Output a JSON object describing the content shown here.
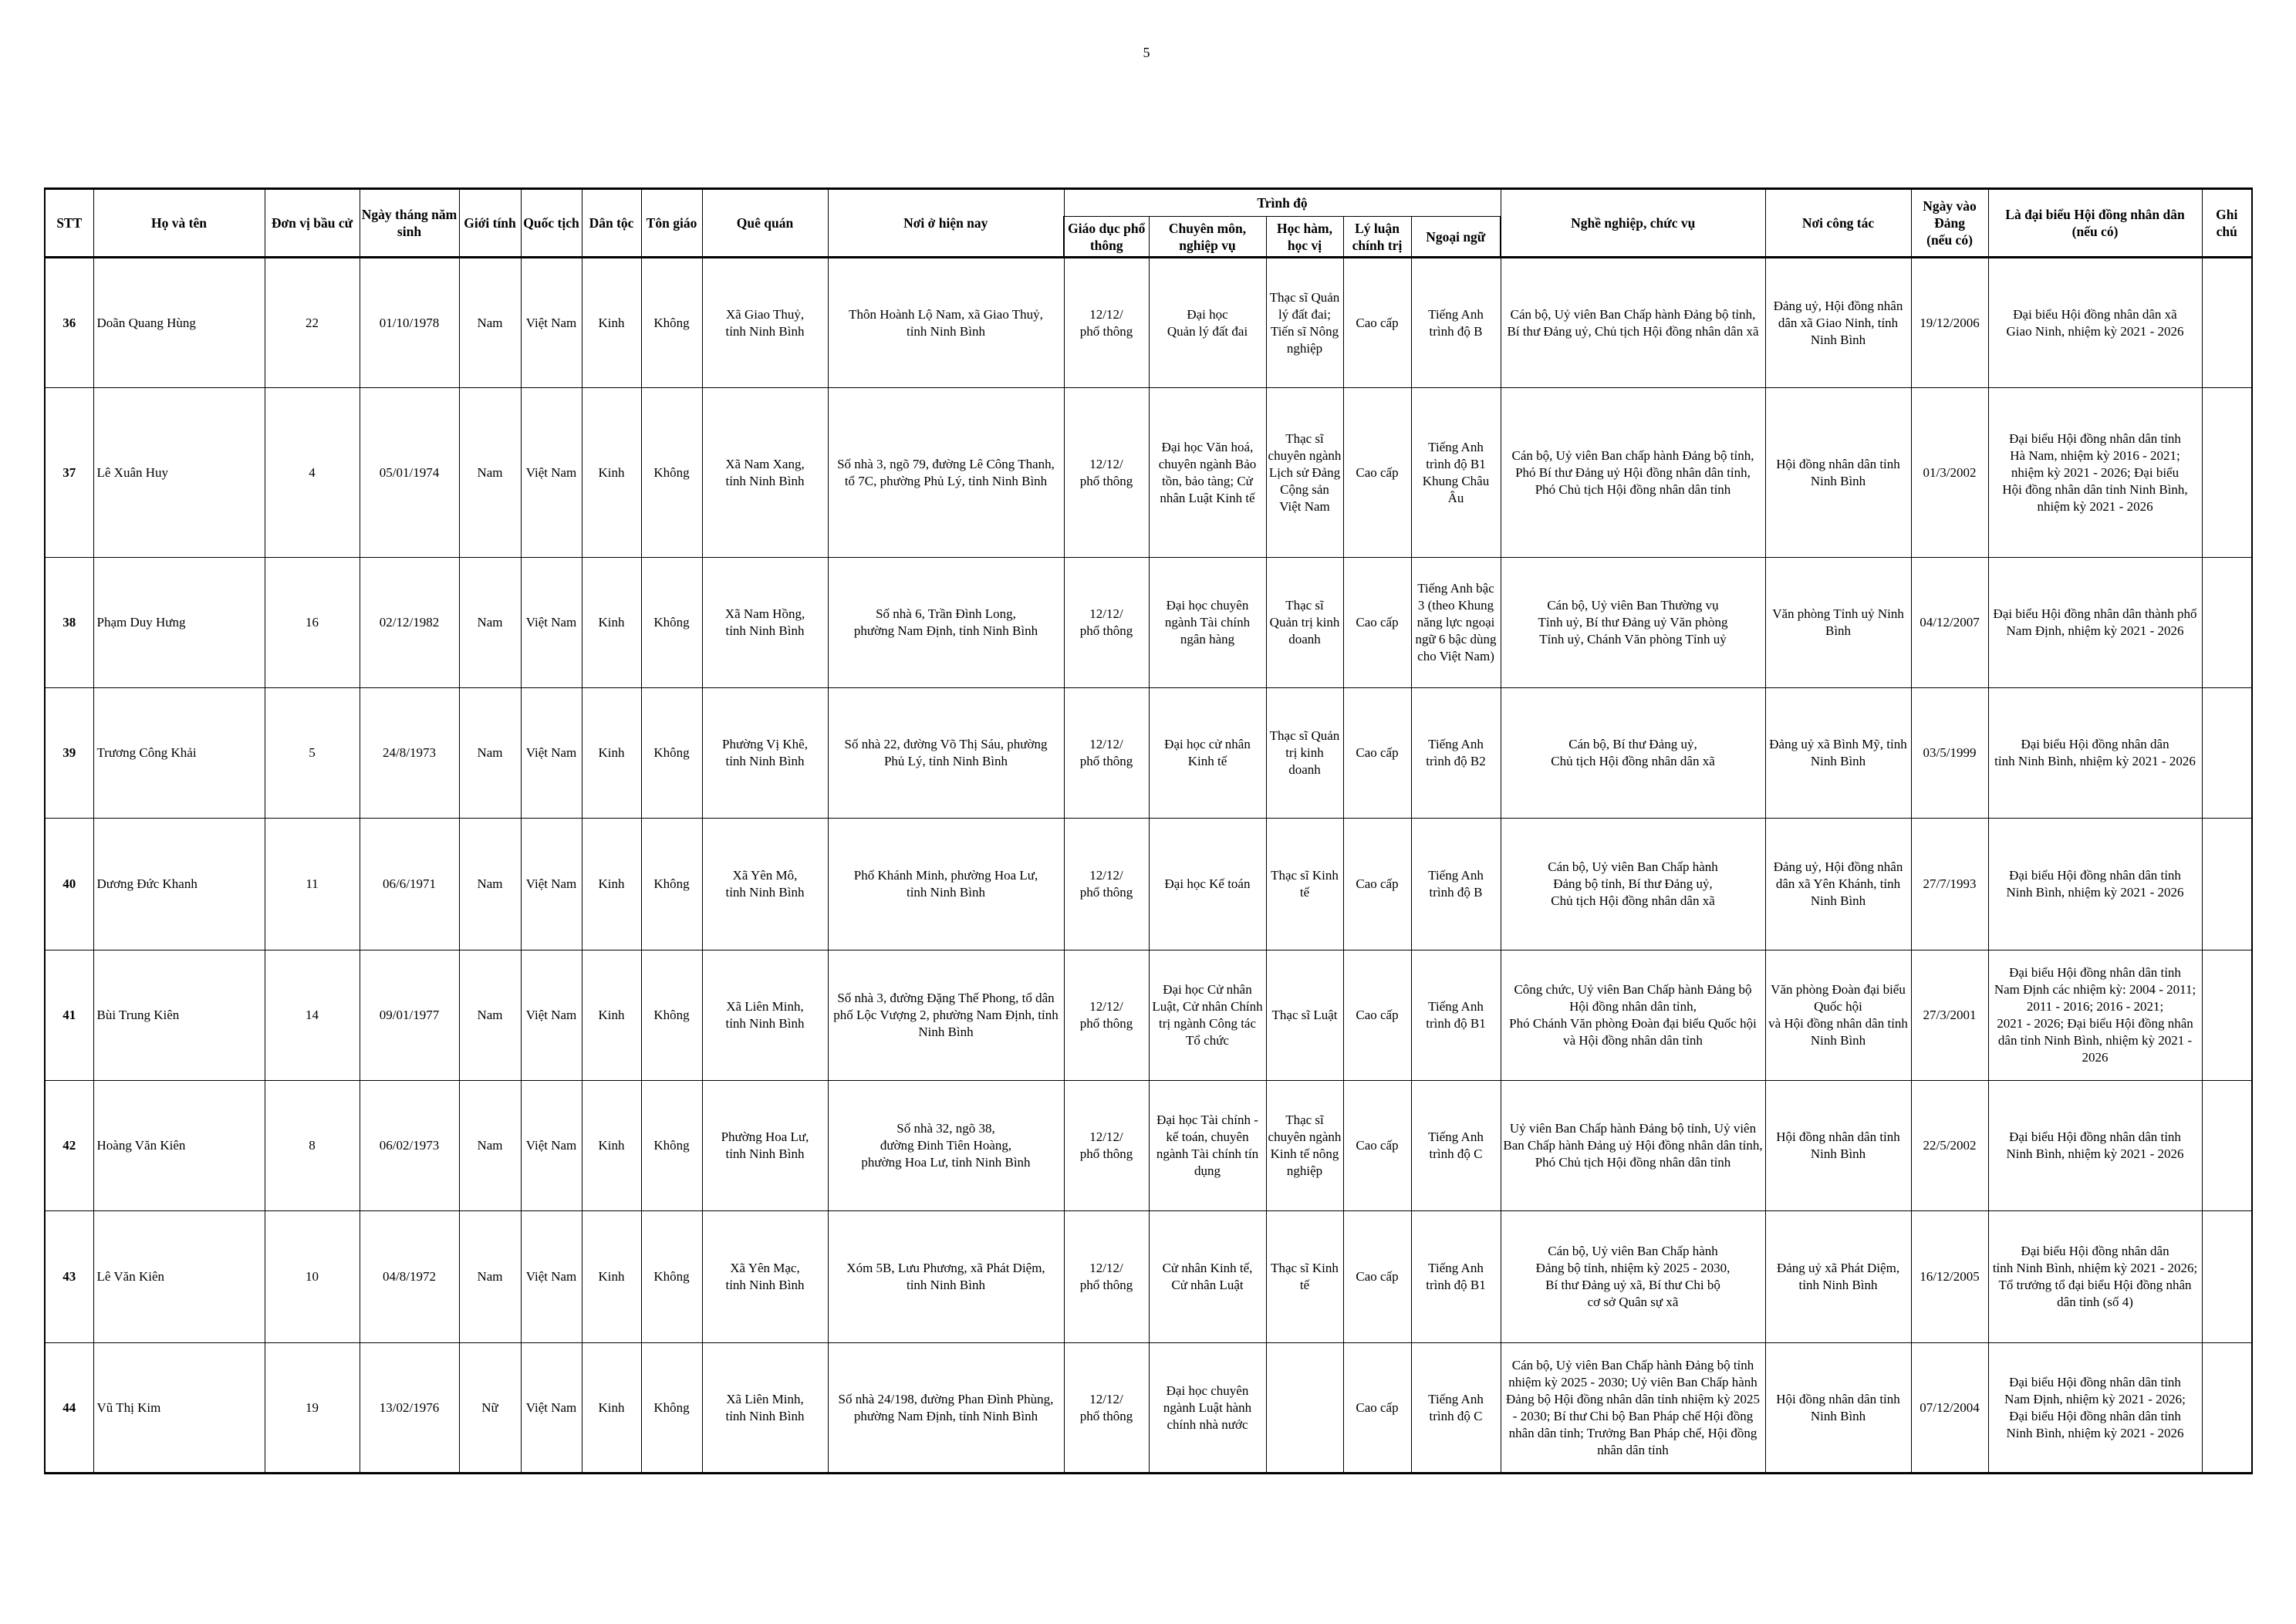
{
  "page_number": "5",
  "table": {
    "headers": {
      "stt": "STT",
      "ho_ten": "Họ và tên",
      "don_vi": "Đơn vị bầu cử",
      "ngay_sinh": "Ngày tháng năm sinh",
      "gioi_tinh": "Giới tính",
      "quoc_tich": "Quốc tịch",
      "dan_toc": "Dân tộc",
      "ton_giao": "Tôn giáo",
      "que_quan": "Quê quán",
      "noi_o": "Nơi ở hiện nay",
      "trinh_do": "Trình độ",
      "gdpt": "Giáo dục phổ thông",
      "chuyen_mon": "Chuyên môn, nghiệp vụ",
      "hoc_ham": "Học hàm, học vị",
      "ly_luan": "Lý luận chính trị",
      "ngoai_ngu": "Ngoại ngữ",
      "nghe_nghiep": "Nghề nghiệp, chức vụ",
      "noi_cong_tac": "Nơi công tác",
      "ngay_vao_dang": "Ngày vào Đảng\n(nếu có)",
      "dai_bieu": "Là đại biểu Hội đồng nhân dân\n(nếu có)",
      "ghi_chu": "Ghi chú"
    },
    "rows": [
      [
        "36",
        "Doãn Quang Hùng",
        "22",
        "01/10/1978",
        "Nam",
        "Việt Nam",
        "Kinh",
        "Không",
        "Xã Giao Thuỷ,\ntỉnh Ninh Bình",
        "Thôn Hoành Lộ Nam, xã Giao Thuỷ,\ntỉnh Ninh Bình",
        "12/12/\nphổ thông",
        "Đại học\nQuản lý đất đai",
        "Thạc sĩ Quản lý đất đai; Tiến sĩ Nông nghiệp",
        "Cao cấp",
        "Tiếng Anh\ntrình độ B",
        "Cán bộ, Uỷ viên Ban Chấp hành Đảng bộ tỉnh,\nBí thư Đảng uỷ, Chủ tịch Hội đồng nhân dân xã",
        "Đảng uỷ, Hội đồng nhân dân xã Giao Ninh, tỉnh Ninh Bình",
        "19/12/2006",
        "Đại biểu Hội đồng nhân dân xã\nGiao Ninh, nhiệm kỳ 2021 - 2026",
        ""
      ],
      [
        "37",
        "Lê Xuân Huy",
        "4",
        "05/01/1974",
        "Nam",
        "Việt Nam",
        "Kinh",
        "Không",
        "Xã Nam Xang,\ntỉnh Ninh Bình",
        "Số nhà 3, ngõ 79, đường Lê Công Thanh,\ntổ 7C, phường Phủ Lý, tỉnh Ninh Bình",
        "12/12/\nphổ thông",
        "Đại học Văn hoá, chuyên ngành Bảo tồn, bảo tàng; Cử nhân Luật Kinh tế",
        "Thạc sĩ chuyên ngành Lịch sử Đảng Cộng sản Việt Nam",
        "Cao cấp",
        "Tiếng Anh\ntrình độ B1\nKhung Châu Âu",
        "Cán bộ, Uỷ viên Ban chấp hành Đảng bộ tỉnh,\nPhó Bí thư Đảng uỷ Hội đồng nhân dân tỉnh,\nPhó Chủ tịch Hội đồng nhân dân tỉnh",
        "Hội đồng nhân dân tỉnh\nNinh Bình",
        "01/3/2002",
        "Đại biểu Hội đồng nhân dân tỉnh\nHà Nam, nhiệm kỳ 2016 - 2021;\nnhiệm kỳ 2021 - 2026; Đại biểu\nHội đồng nhân dân tỉnh Ninh Bình,\nnhiệm kỳ 2021 - 2026",
        ""
      ],
      [
        "38",
        "Phạm Duy Hưng",
        "16",
        "02/12/1982",
        "Nam",
        "Việt Nam",
        "Kinh",
        "Không",
        "Xã Nam Hồng,\ntỉnh Ninh Bình",
        "Số nhà 6, Trần Đình Long,\nphường Nam Định, tỉnh Ninh Bình",
        "12/12/\nphổ thông",
        "Đại học chuyên ngành Tài chính ngân hàng",
        "Thạc sĩ\nQuản trị kinh doanh",
        "Cao cấp",
        "Tiếng Anh bậc 3 (theo Khung năng lực ngoại ngữ 6 bậc dùng cho Việt Nam)",
        "Cán bộ, Uỷ viên Ban Thường vụ\nTỉnh uỷ, Bí thư Đảng uỷ Văn phòng\nTỉnh uỷ, Chánh Văn phòng Tỉnh uỷ",
        "Văn phòng Tỉnh uỷ Ninh Bình",
        "04/12/2007",
        "Đại biểu Hội đồng nhân dân thành phố\nNam Định, nhiệm kỳ 2021 - 2026",
        ""
      ],
      [
        "39",
        "Trương Công Khải",
        "5",
        "24/8/1973",
        "Nam",
        "Việt Nam",
        "Kinh",
        "Không",
        "Phường Vị Khê,\ntỉnh Ninh Bình",
        "Số nhà 22, đường Võ Thị Sáu, phường\nPhủ Lý, tỉnh Ninh Bình",
        "12/12/\nphổ thông",
        "Đại học cử nhân\nKinh tế",
        "Thạc sĩ Quản trị kinh doanh",
        "Cao cấp",
        "Tiếng Anh\ntrình độ B2",
        "Cán bộ, Bí thư Đảng uỷ,\nChủ tịch Hội đồng nhân dân xã",
        "Đảng uỷ xã Bình Mỹ, tỉnh Ninh Bình",
        "03/5/1999",
        "Đại biểu Hội đồng nhân dân\ntỉnh Ninh Bình, nhiệm kỳ 2021 - 2026",
        ""
      ],
      [
        "40",
        "Dương Đức Khanh",
        "11",
        "06/6/1971",
        "Nam",
        "Việt Nam",
        "Kinh",
        "Không",
        "Xã Yên Mô,\ntỉnh Ninh Bình",
        "Phố Khánh Minh, phường Hoa Lư,\ntỉnh Ninh Bình",
        "12/12/\nphổ thông",
        "Đại học Kế toán",
        "Thạc sĩ Kinh tế",
        "Cao cấp",
        "Tiếng Anh\ntrình độ B",
        "Cán bộ, Uỷ viên Ban Chấp hành\nĐảng bộ tỉnh, Bí thư Đảng uỷ,\nChủ tịch Hội đồng nhân dân xã",
        "Đảng uỷ, Hội đồng nhân dân xã Yên Khánh, tỉnh Ninh Bình",
        "27/7/1993",
        "Đại biểu Hội đồng nhân dân tỉnh\nNinh Bình, nhiệm kỳ 2021 - 2026",
        ""
      ],
      [
        "41",
        "Bùi Trung Kiên",
        "14",
        "09/01/1977",
        "Nam",
        "Việt Nam",
        "Kinh",
        "Không",
        "Xã Liên Minh,\ntỉnh Ninh Bình",
        "Số nhà 3, đường Đặng Thế Phong, tổ dân phố Lộc Vượng 2, phường Nam Định, tỉnh Ninh Bình",
        "12/12/\nphổ thông",
        "Đại học Cử nhân Luật, Cử nhân Chính trị ngành Công tác Tổ chức",
        "Thạc sĩ Luật",
        "Cao cấp",
        "Tiếng Anh\ntrình độ B1",
        "Công chức, Uỷ viên Ban Chấp hành Đảng bộ\nHội đồng nhân dân tỉnh,\nPhó Chánh Văn phòng Đoàn đại biểu Quốc hội\nvà Hội đồng nhân dân tỉnh",
        "Văn phòng Đoàn đại biểu\nQuốc hội\nvà Hội đồng nhân dân tỉnh\nNinh Bình",
        "27/3/2001",
        "Đại biểu Hội đồng nhân dân tỉnh\nNam Định các nhiệm kỳ: 2004 - 2011;\n2011 - 2016; 2016 - 2021;\n2021 - 2026; Đại biểu Hội đồng nhân dân tỉnh Ninh Bình, nhiệm kỳ 2021 - 2026",
        ""
      ],
      [
        "42",
        "Hoàng Văn Kiên",
        "8",
        "06/02/1973",
        "Nam",
        "Việt Nam",
        "Kinh",
        "Không",
        "Phường Hoa Lư,\ntỉnh Ninh Bình",
        "Số nhà 32, ngõ 38,\nđường Đinh Tiên Hoàng,\nphường Hoa Lư, tỉnh Ninh Bình",
        "12/12/\nphổ thông",
        "Đại học Tài chính - kế toán, chuyên ngành Tài chính tín dụng",
        "Thạc sĩ chuyên ngành Kinh tế nông nghiệp",
        "Cao cấp",
        "Tiếng Anh\ntrình độ C",
        "Uỷ viên Ban Chấp hành Đảng bộ tỉnh, Uỷ viên Ban Chấp hành Đảng uỷ Hội đồng nhân dân tỉnh, Phó Chủ tịch Hội đồng nhân dân tỉnh",
        "Hội đồng nhân dân tỉnh\nNinh Bình",
        "22/5/2002",
        "Đại biểu Hội đồng nhân dân tỉnh\nNinh Bình, nhiệm kỳ 2021 - 2026",
        ""
      ],
      [
        "43",
        "Lê Văn Kiên",
        "10",
        "04/8/1972",
        "Nam",
        "Việt Nam",
        "Kinh",
        "Không",
        "Xã Yên Mạc,\ntỉnh Ninh Bình",
        "Xóm 5B, Lưu Phương, xã Phát Diệm,\ntỉnh Ninh Bình",
        "12/12/\nphổ thông",
        "Cử nhân Kinh tế,\nCử nhân Luật",
        "Thạc sĩ Kinh tế",
        "Cao cấp",
        "Tiếng Anh\ntrình độ B1",
        "Cán bộ, Uỷ viên Ban Chấp hành\nĐảng bộ tỉnh, nhiệm kỳ 2025 - 2030,\nBí thư Đảng uỷ xã, Bí thư Chi bộ\ncơ sở Quân sự xã",
        "Đảng uỷ xã Phát Diệm,\ntỉnh Ninh Bình",
        "16/12/2005",
        "Đại biểu Hội đồng nhân dân\ntỉnh Ninh Bình, nhiệm kỳ 2021 - 2026;\nTổ trưởng tổ đại biểu Hội đồng nhân dân tỉnh (số 4)",
        ""
      ],
      [
        "44",
        "Vũ Thị Kim",
        "19",
        "13/02/1976",
        "Nữ",
        "Việt Nam",
        "Kinh",
        "Không",
        "Xã Liên Minh,\ntỉnh Ninh Bình",
        "Số nhà 24/198, đường Phan Đình Phùng,\nphường Nam Định, tỉnh Ninh Bình",
        "12/12/\nphổ thông",
        "Đại học chuyên ngành Luật hành chính nhà nước",
        "",
        "Cao cấp",
        "Tiếng Anh\ntrình độ C",
        "Cán bộ, Uỷ viên Ban Chấp hành Đảng bộ tỉnh nhiệm kỳ 2025 - 2030; Uỷ viên Ban Chấp hành Đảng bộ Hội đồng nhân dân tỉnh nhiệm kỳ 2025 - 2030; Bí thư Chi bộ Ban Pháp chế Hội đồng nhân dân tỉnh; Trưởng Ban Pháp chế, Hội đồng nhân dân tỉnh",
        "Hội đồng nhân dân tỉnh\nNinh Bình",
        "07/12/2004",
        "Đại biểu Hội đồng nhân dân tỉnh\nNam Định, nhiệm kỳ 2021 - 2026;\nĐại biểu Hội đồng nhân dân tỉnh\nNinh Bình, nhiệm kỳ 2021 - 2026",
        ""
      ]
    ]
  }
}
